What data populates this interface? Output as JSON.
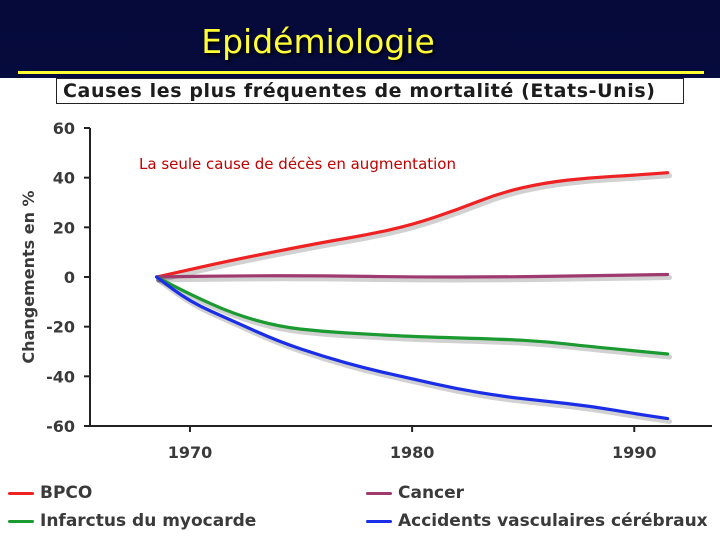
{
  "slide": {
    "title": "Epidémiologie"
  },
  "chart_data": {
    "type": "line",
    "title": "Causes les plus fréquentes de mortalité (Etats-Unis)",
    "annotation": "La seule cause de décès en augmentation",
    "ylabel": "Changements en %",
    "xlabel": "",
    "xlim": [
      1965.5,
      1993.5
    ],
    "ylim": [
      -60,
      60
    ],
    "x_ticks": [
      1970,
      1980,
      1990
    ],
    "y_ticks": [
      60,
      40,
      20,
      0,
      -20,
      -40,
      -60
    ],
    "legend_position": "bottom",
    "grid": false,
    "series": [
      {
        "name": "BPCO",
        "color": "#ee2222",
        "points": [
          [
            1968.5,
            0
          ],
          [
            1972,
            7
          ],
          [
            1976,
            14
          ],
          [
            1978,
            17
          ],
          [
            1980,
            21
          ],
          [
            1982,
            27
          ],
          [
            1984,
            34
          ],
          [
            1986,
            38
          ],
          [
            1988,
            40
          ],
          [
            1990,
            41
          ],
          [
            1991.5,
            42
          ]
        ]
      },
      {
        "name": "Cancer",
        "color": "#9e3a6e",
        "points": [
          [
            1968.5,
            0
          ],
          [
            1972,
            0.5
          ],
          [
            1976,
            0.5
          ],
          [
            1980,
            0
          ],
          [
            1984,
            0
          ],
          [
            1988,
            0.5
          ],
          [
            1991.5,
            1
          ]
        ]
      },
      {
        "name": "Infarctus du myocarde",
        "color": "#1a9a30",
        "points": [
          [
            1968.5,
            0
          ],
          [
            1970,
            -7
          ],
          [
            1972,
            -15
          ],
          [
            1974,
            -20
          ],
          [
            1976,
            -22
          ],
          [
            1978,
            -23
          ],
          [
            1980,
            -24
          ],
          [
            1984,
            -25
          ],
          [
            1986,
            -26
          ],
          [
            1988,
            -28
          ],
          [
            1991.5,
            -31
          ]
        ]
      },
      {
        "name": "Accidents vasculaires cérébraux",
        "color": "#1a2ee8",
        "points": [
          [
            1968.5,
            0
          ],
          [
            1970,
            -10
          ],
          [
            1972,
            -18
          ],
          [
            1974,
            -26
          ],
          [
            1976,
            -32
          ],
          [
            1978,
            -37
          ],
          [
            1980,
            -41
          ],
          [
            1982,
            -45
          ],
          [
            1984,
            -48
          ],
          [
            1986,
            -50
          ],
          [
            1988,
            -52
          ],
          [
            1990,
            -55
          ],
          [
            1991.5,
            -57
          ]
        ]
      }
    ]
  }
}
